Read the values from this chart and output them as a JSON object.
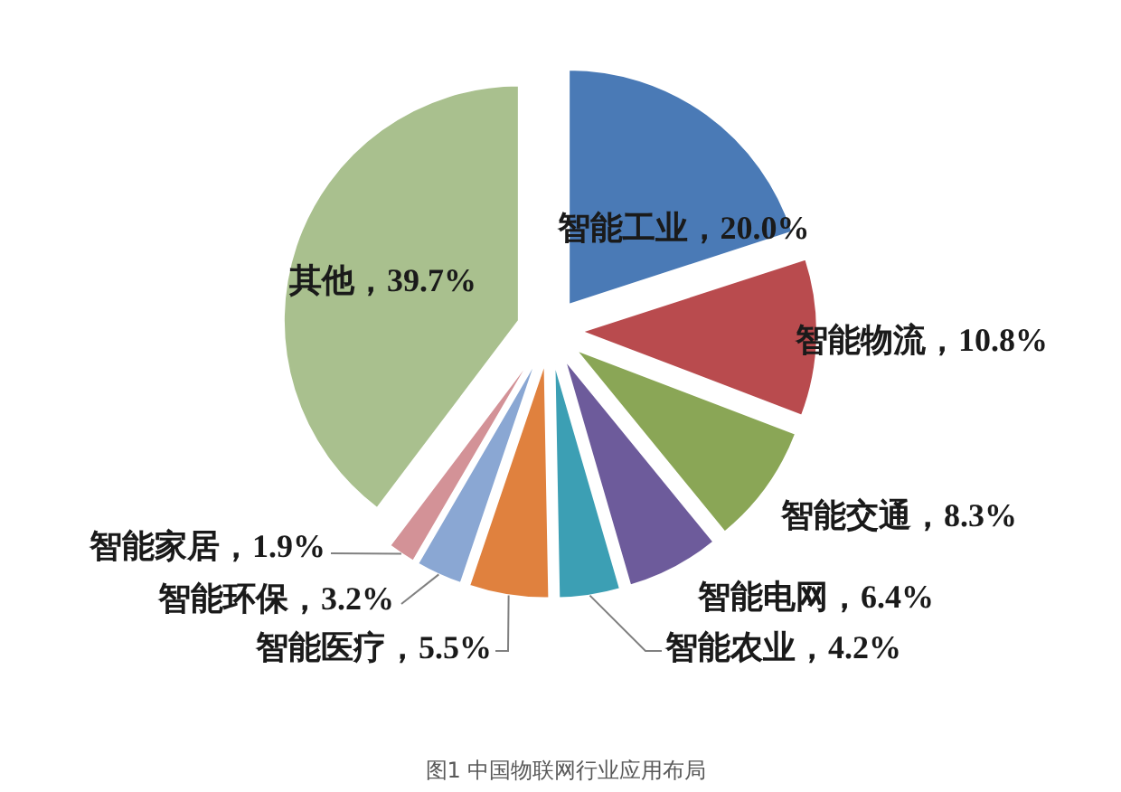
{
  "chart_data": {
    "type": "pie",
    "categories": [
      "智能工业",
      "智能物流",
      "智能交通",
      "智能电网",
      "智能农业",
      "智能医疗",
      "智能环保",
      "智能家居",
      "其他"
    ],
    "values": [
      20.0,
      10.8,
      8.3,
      6.4,
      4.2,
      5.5,
      3.2,
      1.9,
      39.7
    ],
    "colors": [
      "#4a7ab6",
      "#b94b4e",
      "#8aa656",
      "#6d5b9b",
      "#3c9fb4",
      "#e0813e",
      "#8aa7d3",
      "#d39297",
      "#a9c08e"
    ],
    "value_labels": [
      "20.0%",
      "10.8%",
      "8.3%",
      "6.4%",
      "4.2%",
      "5.5%",
      "3.2%",
      "1.9%",
      "39.7%"
    ],
    "annotations": [
      "图1 中国物联网行业应用布局"
    ]
  }
}
